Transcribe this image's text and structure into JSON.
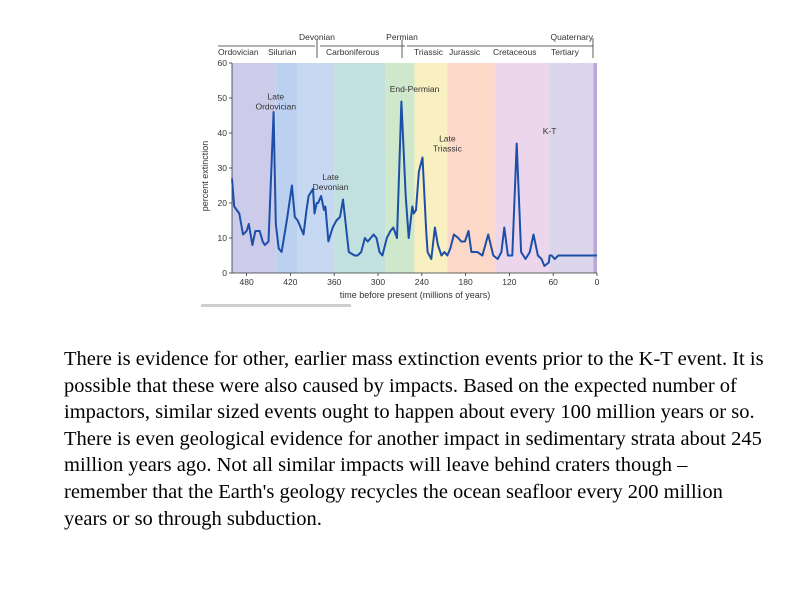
{
  "chart_data": {
    "type": "line",
    "ylabel": "percent extinction",
    "xlabel": "time before present (millions of years)",
    "xlim": [
      500,
      0
    ],
    "ylim": [
      0,
      60
    ],
    "x_ticks": [
      480,
      420,
      360,
      300,
      240,
      180,
      120,
      60,
      0
    ],
    "y_ticks": [
      0,
      10,
      20,
      30,
      40,
      50,
      60
    ],
    "grid": false,
    "periods_lower": [
      "Ordovician",
      "Silurian",
      "Carboniferous",
      "Triassic",
      "Jurassic",
      "Cretaceous",
      "Tertiary"
    ],
    "periods_upper": [
      "Devonian",
      "Permian",
      "Quaternary"
    ],
    "period_bands": [
      {
        "from": 500,
        "to": 440,
        "color": "#cdcbea"
      },
      {
        "from": 440,
        "to": 410,
        "color": "#bcd0f0"
      },
      {
        "from": 410,
        "to": 360,
        "color": "#c6d8f2"
      },
      {
        "from": 360,
        "to": 290,
        "color": "#c3e0e0"
      },
      {
        "from": 290,
        "to": 250,
        "color": "#cfe8cc"
      },
      {
        "from": 250,
        "to": 205,
        "color": "#f8f0c0"
      },
      {
        "from": 205,
        "to": 140,
        "color": "#fbd8c8"
      },
      {
        "from": 140,
        "to": 65,
        "color": "#ecd6ec"
      },
      {
        "from": 65,
        "to": 5,
        "color": "#dcd6ec"
      },
      {
        "from": 5,
        "to": 0,
        "color": "#b8a8d8"
      }
    ],
    "annotations": [
      {
        "text": "Late Ordovician",
        "x": 440,
        "y": 45
      },
      {
        "text": "Late Devonian",
        "x": 365,
        "y": 22
      },
      {
        "text": "End-Permian",
        "x": 250,
        "y": 50
      },
      {
        "text": "Late Triassic",
        "x": 205,
        "y": 33
      },
      {
        "text": "K-T",
        "x": 65,
        "y": 38
      }
    ],
    "line_color": "#1c4fa8",
    "series": [
      {
        "x": [
          500,
          497,
          490,
          485,
          480,
          477,
          472,
          468,
          462,
          458,
          455,
          450,
          443,
          440,
          436,
          432,
          425,
          418,
          414,
          410,
          402,
          398,
          395,
          389,
          387,
          384,
          382,
          378,
          374,
          372,
          368,
          362,
          357,
          352,
          348,
          340,
          332,
          328,
          323,
          318,
          314,
          306,
          302,
          298,
          294,
          288,
          283,
          279,
          274,
          268,
          262,
          258,
          253,
          251,
          248,
          244,
          239,
          234,
          232,
          227,
          222,
          218,
          213,
          209,
          205,
          201,
          196,
          190,
          186,
          181,
          176,
          172,
          169,
          164,
          157,
          149,
          142,
          136,
          131,
          127,
          122,
          119,
          116,
          110,
          104,
          98,
          95,
          92,
          87,
          81,
          76,
          72,
          66,
          65,
          62,
          58,
          53,
          46,
          41,
          38,
          35,
          30,
          24,
          19,
          14,
          9,
          4,
          0
        ],
        "y": [
          27,
          19,
          17,
          11,
          12,
          14,
          8,
          12,
          12,
          9,
          8,
          9,
          46,
          14,
          7,
          6,
          15,
          25,
          16,
          15,
          11,
          18,
          22,
          24,
          17,
          20,
          20,
          22,
          18,
          19,
          9,
          13,
          15,
          16,
          21,
          6,
          5,
          5,
          6,
          10,
          9,
          11,
          10,
          6,
          5,
          10,
          12,
          13,
          10,
          49,
          22,
          10,
          19,
          17,
          18,
          29,
          33,
          12,
          6,
          4,
          13,
          8,
          5,
          6,
          5,
          7,
          11,
          10,
          9,
          9,
          12,
          6,
          6,
          6,
          5,
          11,
          5,
          4,
          6,
          13,
          5,
          5,
          5,
          37,
          6,
          4,
          5,
          6,
          11,
          5,
          4,
          2,
          3,
          5,
          5,
          4,
          5,
          5,
          5,
          5,
          5,
          5,
          5,
          5,
          5,
          5,
          5,
          5
        ]
      }
    ]
  },
  "text": {
    "body": "There is evidence for other, earlier mass extinction events prior to the K-T event.  It is possible that these were also caused by impacts.  Based on the expected number of impactors, similar sized events ought to happen about every 100 million years or so.  There is even geological evidence for another impact in sedimentary strata about 245 million years ago.  Not all similar impacts will leave behind craters though – remember that the Earth's geology recycles the ocean seafloor every 200 million years or so through subduction."
  }
}
